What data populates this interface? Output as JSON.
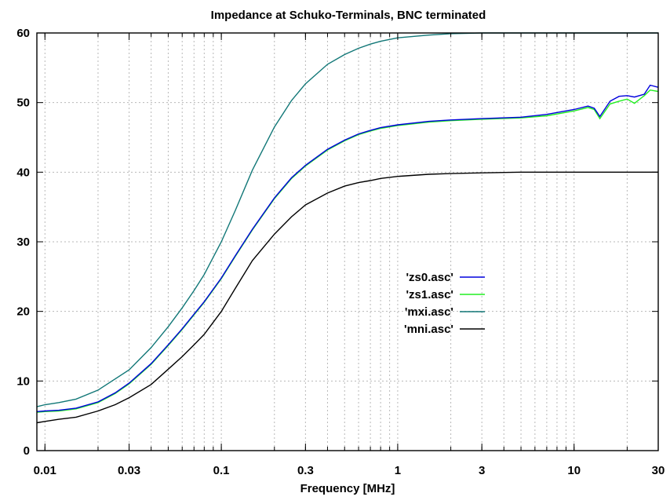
{
  "chart_data": {
    "type": "line",
    "title": "Impedance at Schuko-Terminals, BNC terminated",
    "xlabel": "Frequency [MHz]",
    "ylabel": "",
    "xscale": "log",
    "xlim": [
      0.009,
      30
    ],
    "ylim": [
      0,
      60
    ],
    "x_ticks": [
      0.01,
      0.03,
      0.1,
      0.3,
      1,
      3,
      10,
      30
    ],
    "x_tick_labels": [
      "0.01",
      "0.03",
      "0.1",
      "0.3",
      "1",
      "3",
      "10",
      "30"
    ],
    "y_ticks": [
      0,
      10,
      20,
      30,
      40,
      50,
      60
    ],
    "y_tick_labels": [
      "0",
      "10",
      "20",
      "30",
      "40",
      "50",
      "60"
    ],
    "grid": true,
    "legend_position": "center-right",
    "series": [
      {
        "name": "'zs0.asc'",
        "color": "#0000dd",
        "x": [
          0.009,
          0.01,
          0.012,
          0.015,
          0.02,
          0.025,
          0.03,
          0.04,
          0.05,
          0.06,
          0.07,
          0.08,
          0.1,
          0.12,
          0.15,
          0.2,
          0.25,
          0.3,
          0.4,
          0.5,
          0.6,
          0.7,
          0.8,
          1,
          1.5,
          2,
          3,
          5,
          7,
          10,
          12,
          13,
          14,
          16,
          18,
          20,
          22,
          25,
          27,
          30
        ],
        "y": [
          5.6,
          5.7,
          5.8,
          6.1,
          7.0,
          8.3,
          9.7,
          12.5,
          15.2,
          17.5,
          19.6,
          21.4,
          24.8,
          28.0,
          31.8,
          36.3,
          39.2,
          41.0,
          43.3,
          44.6,
          45.5,
          46.0,
          46.4,
          46.8,
          47.3,
          47.5,
          47.7,
          47.9,
          48.3,
          49.0,
          49.5,
          49.2,
          48.0,
          50.2,
          50.9,
          51.0,
          50.8,
          51.2,
          52.5,
          52.2
        ]
      },
      {
        "name": "'zs1.asc'",
        "color": "#22ee22",
        "x": [
          0.009,
          0.01,
          0.012,
          0.015,
          0.02,
          0.025,
          0.03,
          0.04,
          0.05,
          0.06,
          0.07,
          0.08,
          0.1,
          0.12,
          0.15,
          0.2,
          0.25,
          0.3,
          0.4,
          0.5,
          0.6,
          0.7,
          0.8,
          1,
          1.5,
          2,
          3,
          5,
          7,
          10,
          12,
          13,
          14,
          16,
          18,
          20,
          22,
          25,
          27,
          30
        ],
        "y": [
          5.5,
          5.6,
          5.7,
          6.0,
          6.9,
          8.2,
          9.6,
          12.4,
          15.1,
          17.4,
          19.5,
          21.3,
          24.7,
          27.9,
          31.7,
          36.2,
          39.1,
          40.9,
          43.2,
          44.5,
          45.4,
          45.9,
          46.3,
          46.7,
          47.2,
          47.4,
          47.6,
          47.8,
          48.1,
          48.8,
          49.3,
          49.0,
          47.7,
          49.8,
          50.2,
          50.5,
          49.9,
          51.0,
          51.8,
          51.6
        ]
      },
      {
        "name": "'mxi.asc'",
        "color": "#117777",
        "x": [
          0.009,
          0.01,
          0.012,
          0.015,
          0.02,
          0.025,
          0.03,
          0.04,
          0.05,
          0.06,
          0.07,
          0.08,
          0.1,
          0.12,
          0.15,
          0.2,
          0.25,
          0.3,
          0.4,
          0.5,
          0.6,
          0.7,
          0.8,
          1,
          1.5,
          2,
          3,
          5,
          10,
          30
        ],
        "y": [
          6.3,
          6.6,
          6.9,
          7.4,
          8.7,
          10.3,
          11.6,
          14.8,
          17.8,
          20.5,
          23.0,
          25.3,
          30.0,
          34.5,
          40.3,
          46.5,
          50.3,
          52.7,
          55.5,
          56.9,
          57.8,
          58.4,
          58.8,
          59.3,
          59.7,
          59.9,
          60.0,
          60.0,
          60.0,
          60.0
        ]
      },
      {
        "name": "'mni.asc'",
        "color": "#000000",
        "x": [
          0.009,
          0.01,
          0.012,
          0.015,
          0.02,
          0.025,
          0.03,
          0.04,
          0.05,
          0.06,
          0.07,
          0.08,
          0.1,
          0.12,
          0.15,
          0.2,
          0.25,
          0.3,
          0.4,
          0.5,
          0.6,
          0.7,
          0.8,
          1,
          1.5,
          2,
          3,
          5,
          10,
          30
        ],
        "y": [
          4.0,
          4.2,
          4.5,
          4.8,
          5.7,
          6.6,
          7.6,
          9.5,
          11.7,
          13.5,
          15.2,
          16.7,
          20.0,
          23.3,
          27.3,
          31.1,
          33.6,
          35.3,
          37.0,
          38.0,
          38.5,
          38.8,
          39.1,
          39.4,
          39.7,
          39.8,
          39.9,
          40.0,
          40.0,
          40.0
        ]
      }
    ]
  }
}
